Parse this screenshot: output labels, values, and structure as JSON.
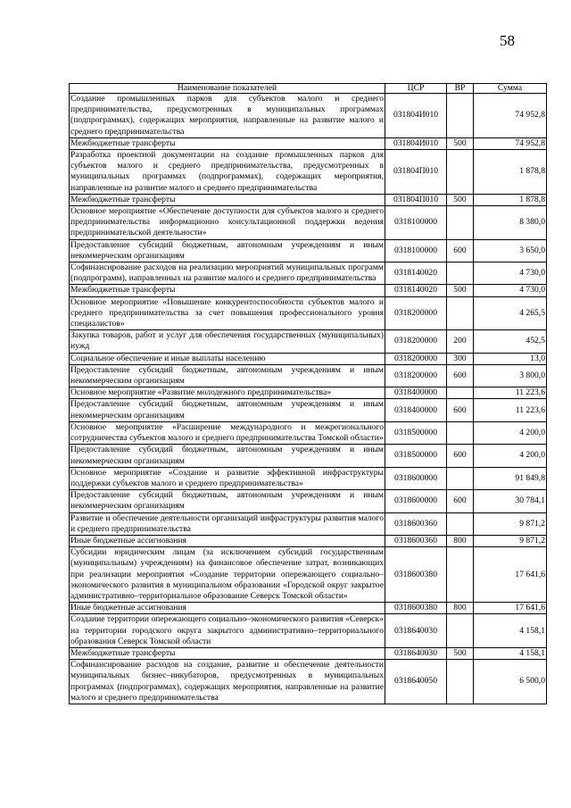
{
  "page_number": "58",
  "table": {
    "headers": [
      "Наименование показателей",
      "ЦСР",
      "ВР",
      "Сумма"
    ],
    "rows": [
      {
        "name": "Создание промышленных парков для субъектов малого и среднего предпринимательства, предусмотренных в муниципальных программах (подпрограммах), содержащих мероприятия, направленные на развитие малого и среднего предпринимательства",
        "csr": "031804И010",
        "vr": "",
        "sum": "74 952,8"
      },
      {
        "name": "Межбюджетные трансферты",
        "csr": "031804И010",
        "vr": "500",
        "sum": "74 952,8"
      },
      {
        "name": "Разработка проектной документации на создание промышленных парков для субъектов малого и среднего предпринимательства, предусмотренных в муниципальных программах (подпрограммах), содержащих мероприятия, направленные на развитие малого и среднего предпринимательства",
        "csr": "031804П010",
        "vr": "",
        "sum": "1 878,8"
      },
      {
        "name": "Межбюджетные трансферты",
        "csr": "031804П010",
        "vr": "500",
        "sum": "1 878,8"
      },
      {
        "name": "Основное мероприятие «Обеспечение доступности для субъектов малого и среднего предпринимательства информационно консультационной поддержки ведения предпринимательской деятельности»",
        "csr": "0318100000",
        "vr": "",
        "sum": "8 380,0"
      },
      {
        "name": "Предоставление субсидий бюджетным, автономным учреждениям и иным некоммерческим организациям",
        "csr": "0318100000",
        "vr": "600",
        "sum": "3 650,0"
      },
      {
        "name": "Софинансирование расходов на реализацию мероприятий муниципальных программ (подпрограмм), направленных на развитие малого и среднего предпринимательства",
        "csr": "0318140020",
        "vr": "",
        "sum": "4 730,0"
      },
      {
        "name": "Межбюджетные трансферты",
        "csr": "0318140020",
        "vr": "500",
        "sum": "4 730,0"
      },
      {
        "name": "Основное мероприятие «Повышение конкурентоспособности субъектов малого и среднего предпринимательства за счет повышения профессионального уровня специалистов»",
        "csr": "0318200000",
        "vr": "",
        "sum": "4 265,5"
      },
      {
        "name": "Закупка товаров, работ и услуг для обеспечения государственных (муниципальных) нужд",
        "csr": "0318200000",
        "vr": "200",
        "sum": "452,5"
      },
      {
        "name": "Социальное обеспечение и иные выплаты населению",
        "csr": "0318200000",
        "vr": "300",
        "sum": "13,0"
      },
      {
        "name": "Предоставление субсидий бюджетным, автономным учреждениям и иным некоммерческим организациям",
        "csr": "0318200000",
        "vr": "600",
        "sum": "3 800,0"
      },
      {
        "name": "Основное мероприятие «Развитие молодежного предпринимательства»",
        "csr": "0318400000",
        "vr": "",
        "sum": "11 223,6"
      },
      {
        "name": "Предоставление субсидий бюджетным, автономным учреждениям и иным некоммерческим организациям",
        "csr": "0318400000",
        "vr": "600",
        "sum": "11 223,6"
      },
      {
        "name": "Основное мероприятие «Расширение международного и межрегионального сотрудничества субъектов малого и среднего предпринимательства Томской области»",
        "csr": "0318500000",
        "vr": "",
        "sum": "4 200,0"
      },
      {
        "name": "Предоставление субсидий бюджетным, автономным учреждениям и иным некоммерческим организациям",
        "csr": "0318500000",
        "vr": "600",
        "sum": "4 200,0"
      },
      {
        "name": "Основное мероприятие «Создание и развитие эффективной инфраструктуры поддержки субъектов малого и среднего предпринимательства»",
        "csr": "0318600000",
        "vr": "",
        "sum": "91 849,8"
      },
      {
        "name": "Предоставление субсидий бюджетным, автономным учреждениям и иным некоммерческим организациям",
        "csr": "0318600000",
        "vr": "600",
        "sum": "30 784,1"
      },
      {
        "name": "Развитие и обеспечение деятельности организаций инфраструктуры развития малого и среднего предпринимательства",
        "csr": "0318600360",
        "vr": "",
        "sum": "9 871,2"
      },
      {
        "name": "Иные бюджетные ассигнования",
        "csr": "0318600360",
        "vr": "800",
        "sum": "9 871,2"
      },
      {
        "name": "Субсидии юридическим лицам (за исключением субсидий государственным (муниципальным) учреждениям) на финансовое обеспечение затрат, возникающих при реализации мероприятия «Создание территории опережающего социально–экономического развития в муниципальном образовании «Городской округ закрытое административно–территориальное образование Северск Томской области»",
        "csr": "0318600380",
        "vr": "",
        "sum": "17 641,6"
      },
      {
        "name": "Иные бюджетные ассигнования",
        "csr": "0318600380",
        "vr": "800",
        "sum": "17 641,6"
      },
      {
        "name": "Создание территории опережающего социально–экономического развития «Северск» на территории городского округа закрытого административно–территориального образования Северск Томской области",
        "csr": "0318640030",
        "vr": "",
        "sum": "4 158,1"
      },
      {
        "name": "Межбюджетные трансферты",
        "csr": "0318640030",
        "vr": "500",
        "sum": "4 158,1"
      },
      {
        "name": "Софинансирование расходов на создание, развитие и обеспечение деятельности муниципальных бизнес–инкубаторов, предусмотренных в муниципальных программах (подпрограммах), содержащих мероприятия, направленные на развитие малого и среднего предпринимательства",
        "csr": "0318640050",
        "vr": "",
        "sum": "6 500,0"
      }
    ]
  }
}
